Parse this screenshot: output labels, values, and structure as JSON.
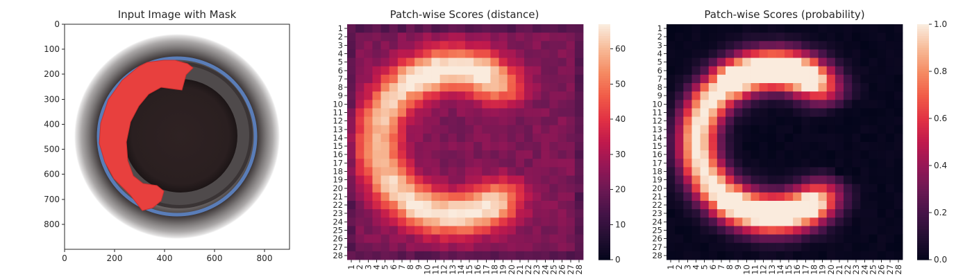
{
  "chart_data": [
    {
      "type": "image",
      "title": "Input Image with Mask",
      "xlim": [
        0,
        900
      ],
      "ylim": [
        900,
        0
      ],
      "xticks": [
        "0",
        "200",
        "400",
        "600",
        "800"
      ],
      "yticks": [
        "0",
        "100",
        "200",
        "300",
        "400",
        "500",
        "600",
        "700",
        "800"
      ]
    },
    {
      "type": "heatmap",
      "title": "Patch-wise Scores (distance)",
      "grid_size": [
        28,
        28
      ],
      "x_categories": [
        "1",
        "2",
        "3",
        "4",
        "5",
        "6",
        "7",
        "8",
        "9",
        "10",
        "11",
        "12",
        "13",
        "14",
        "15",
        "16",
        "17",
        "18",
        "19",
        "20",
        "21",
        "22",
        "23",
        "24",
        "25",
        "26",
        "27",
        "28"
      ],
      "y_categories": [
        "1",
        "2",
        "3",
        "4",
        "5",
        "6",
        "7",
        "8",
        "9",
        "10",
        "11",
        "12",
        "13",
        "14",
        "15",
        "16",
        "17",
        "18",
        "19",
        "20",
        "21",
        "22",
        "23",
        "24",
        "25",
        "26",
        "27",
        "28"
      ],
      "value_range": [
        0,
        67
      ],
      "colorbar_ticks": [
        "0",
        "10",
        "20",
        "30",
        "40",
        "50",
        "60"
      ],
      "colormap": "rocket",
      "pattern": "C-shaped high-value region with peak near row 7, columns 9-14"
    },
    {
      "type": "heatmap",
      "title": "Patch-wise Scores (probability)",
      "grid_size": [
        28,
        28
      ],
      "x_categories": [
        "1",
        "2",
        "3",
        "4",
        "5",
        "6",
        "7",
        "8",
        "9",
        "10",
        "11",
        "12",
        "13",
        "14",
        "15",
        "16",
        "17",
        "18",
        "19",
        "20",
        "21",
        "22",
        "23",
        "24",
        "25",
        "26",
        "27",
        "28"
      ],
      "y_categories": [
        "1",
        "2",
        "3",
        "4",
        "5",
        "6",
        "7",
        "8",
        "9",
        "10",
        "11",
        "12",
        "13",
        "14",
        "15",
        "16",
        "17",
        "18",
        "19",
        "20",
        "21",
        "22",
        "23",
        "24",
        "25",
        "26",
        "27",
        "28"
      ],
      "value_range": [
        0.0,
        1.0
      ],
      "colorbar_ticks": [
        "0.0",
        "0.2",
        "0.4",
        "0.6",
        "0.8",
        "1.0"
      ],
      "colormap": "rocket"
    }
  ],
  "colors": {
    "mask": "#e8403e",
    "ring_blue": "#5a7db8",
    "ring_dark": "#4a4546",
    "interior": "#2e2223"
  }
}
